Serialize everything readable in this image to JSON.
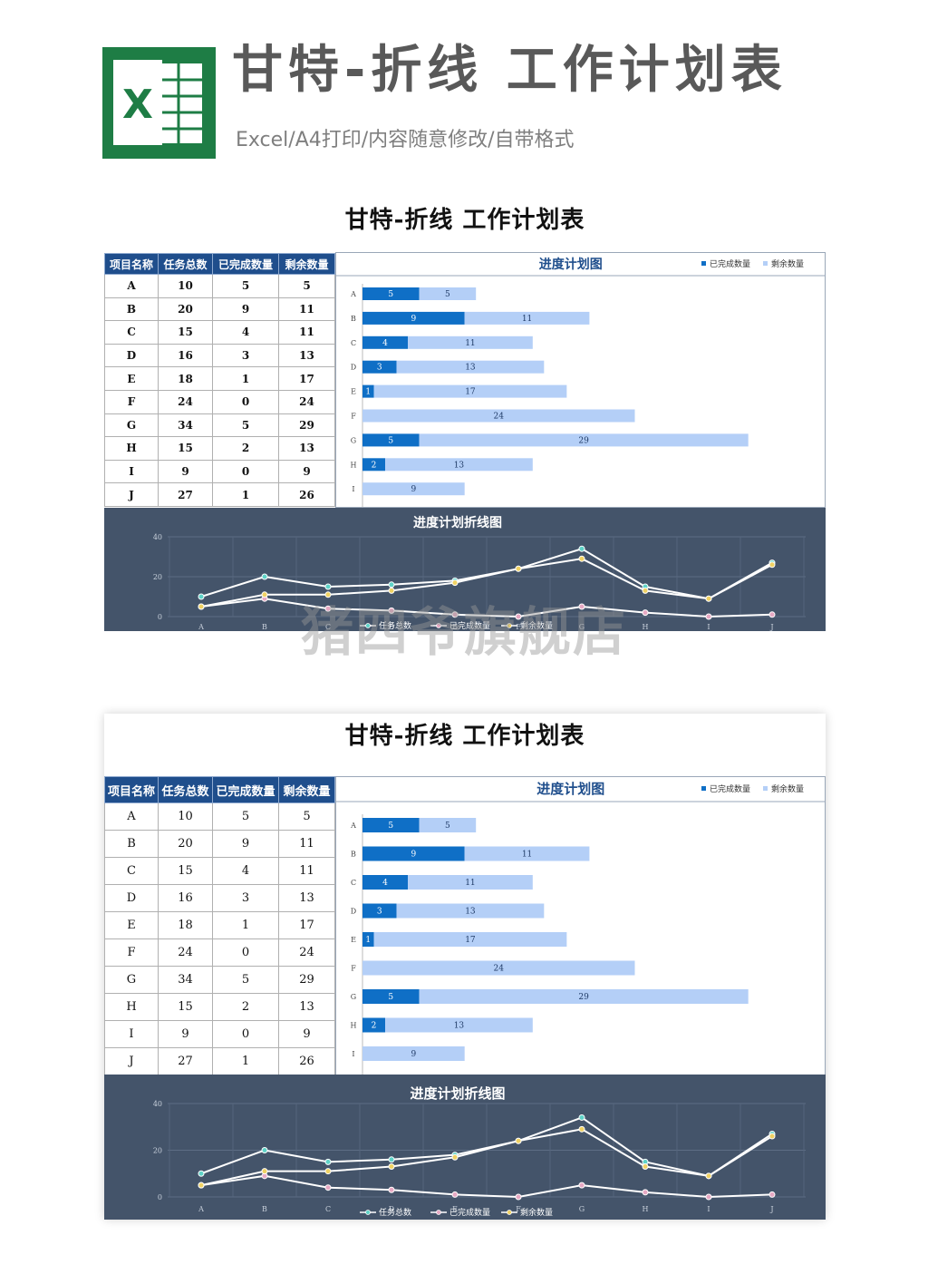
{
  "header": {
    "title": "甘特-折线 工作计划表",
    "subtitle": "Excel/A4打印/内容随意修改/自带格式",
    "logo_letter": "X"
  },
  "sheet": {
    "title": "甘特-折线 工作计划表",
    "columns": [
      "项目名称",
      "任务总数",
      "已完成数量",
      "剩余数量"
    ],
    "rows": [
      [
        "A",
        "10",
        "5",
        "5"
      ],
      [
        "B",
        "20",
        "9",
        "11"
      ],
      [
        "C",
        "15",
        "4",
        "11"
      ],
      [
        "D",
        "16",
        "3",
        "13"
      ],
      [
        "E",
        "18",
        "1",
        "17"
      ],
      [
        "F",
        "24",
        "0",
        "24"
      ],
      [
        "G",
        "34",
        "5",
        "29"
      ],
      [
        "H",
        "15",
        "2",
        "13"
      ],
      [
        "I",
        "9",
        "0",
        "9"
      ],
      [
        "J",
        "27",
        "1",
        "26"
      ]
    ]
  },
  "watermark": "猪四爷旗舰店",
  "colors": {
    "header_fill": "#1f4e8c",
    "completed_bar": "#0f6fc6",
    "remaining_bar": "#b4cff7",
    "line_panel_bg": "#44546a",
    "excel_green": "#1e7d45"
  },
  "chart_data": [
    {
      "type": "bar",
      "stacked": true,
      "orientation": "horizontal",
      "title": "进度计划图",
      "categories": [
        "A",
        "B",
        "C",
        "D",
        "E",
        "F",
        "G",
        "H",
        "I"
      ],
      "series": [
        {
          "name": "已完成数量",
          "values": [
            5,
            9,
            4,
            3,
            1,
            0,
            5,
            2,
            0
          ]
        },
        {
          "name": "剩余数量",
          "values": [
            5,
            11,
            11,
            13,
            17,
            24,
            29,
            13,
            9
          ]
        }
      ],
      "legend": "top-right",
      "data_labels": true
    },
    {
      "type": "line",
      "title": "进度计划折线图",
      "categories": [
        "A",
        "B",
        "C",
        "D",
        "E",
        "F",
        "G",
        "H",
        "I",
        "J"
      ],
      "series": [
        {
          "name": "任务总数",
          "values": [
            10,
            20,
            15,
            16,
            18,
            24,
            34,
            15,
            9,
            27
          ],
          "marker_color": "#5fd3c8"
        },
        {
          "name": "已完成数量",
          "values": [
            5,
            9,
            4,
            3,
            1,
            0,
            5,
            2,
            0,
            1
          ],
          "marker_color": "#e7a9c4"
        },
        {
          "name": "剩余数量",
          "values": [
            5,
            11,
            11,
            13,
            17,
            24,
            29,
            13,
            9,
            26
          ],
          "marker_color": "#f0d264"
        }
      ],
      "y_ticks": [
        0,
        20,
        40
      ],
      "ylim": [
        0,
        40
      ],
      "grid": true,
      "legend": "bottom"
    }
  ]
}
